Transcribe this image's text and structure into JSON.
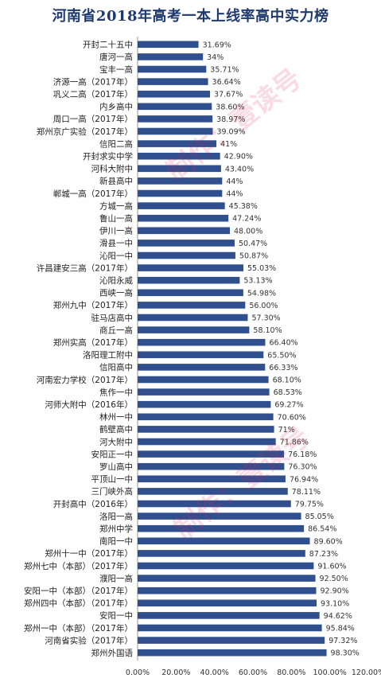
{
  "title": "河南省2018年高考一本上线率高中实力榜",
  "watermark": "制作：壹读号",
  "chart_data": {
    "type": "bar",
    "orientation": "horizontal",
    "title": "河南省2018年高考一本上线率高中实力榜",
    "bar_color": "#2f4f8f",
    "xlim": [
      0,
      120
    ],
    "x_ticks": [
      "0.00%",
      "20.00%",
      "40.00%",
      "60.00%",
      "80.00%",
      "100.00%",
      "120.00%"
    ],
    "categories": [
      "开封二十五中",
      "唐河一高",
      "宝丰一高",
      "济源一高（2017年）",
      "巩义二高（2017年）",
      "内乡高中",
      "周口一高（2017年）",
      "郑州京广实验（2017年）",
      "信阳二高",
      "开封求实中学",
      "河科大附中",
      "新县高中",
      "郸城一高（2017年）",
      "方城一高",
      "鲁山一高",
      "伊川一高",
      "滑县一中",
      "沁阳一中",
      "许昌建安三高（2017年）",
      "沁阳永威",
      "西峡一高",
      "郑州九中（2017年）",
      "驻马店高中",
      "商丘一高",
      "郑州实高（2017年）",
      "洛阳理工附中",
      "信阳高中",
      "河南宏力学校（2017年）",
      "焦作一中",
      "河师大附中（2016年）",
      "林州一中",
      "鹤壁高中",
      "河大附中",
      "安阳正一中",
      "罗山高中",
      "平顶山一中",
      "三门峡外高",
      "开封高中（2016年）",
      "洛阳一高",
      "郑州中学",
      "南阳一中",
      "郑州十一中（2017年）",
      "郑州七中（本部）（2017年）",
      "濮阳一高",
      "安阳一中（本部）（2017年）",
      "郑州四中（本部）（2017年）",
      "安阳一中",
      "郑州一中（本部）（2017年）",
      "河南省实验（2017年）",
      "郑州外国语"
    ],
    "values": [
      31.69,
      34,
      35.71,
      36.64,
      37.67,
      38.6,
      38.97,
      39.09,
      41,
      42.9,
      43.4,
      44,
      44,
      45.38,
      47.24,
      48.0,
      50.47,
      50.87,
      55.03,
      53.13,
      54.98,
      56.0,
      57.3,
      58.1,
      66.4,
      65.5,
      66.33,
      68.1,
      68.53,
      69.27,
      70.6,
      71,
      71.86,
      76.18,
      76.3,
      76.94,
      78.11,
      79.75,
      85.05,
      86.54,
      89.6,
      87.23,
      91.6,
      92.5,
      92.9,
      93.1,
      94.62,
      95.84,
      97.32,
      98.3
    ],
    "value_labels": [
      "31.69%",
      "34%",
      "35.71%",
      "36.64%",
      "37.67%",
      "38.60%",
      "38.97%",
      "39.09%",
      "41%",
      "42.90%",
      "43.40%",
      "44%",
      "44%",
      "45.38%",
      "47.24%",
      "48.00%",
      "50.47%",
      "50.87%",
      "55.03%",
      "53.13%",
      "54.98%",
      "56.00%",
      "57.30%",
      "58.10%",
      "66.40%",
      "65.50%",
      "66.33%",
      "68.10%",
      "68.53%",
      "69.27%",
      "70.60%",
      "71%",
      "71.86%",
      "76.18%",
      "76.30%",
      "76.94%",
      "78.11%",
      "79.75%",
      "85.05%",
      "86.54%",
      "89.60%",
      "87.23%",
      "91.60%",
      "92.50%",
      "92.90%",
      "93.10%",
      "94.62%",
      "95.84%",
      "97.32%",
      "98.30%"
    ],
    "grid": false,
    "legend": "none"
  }
}
